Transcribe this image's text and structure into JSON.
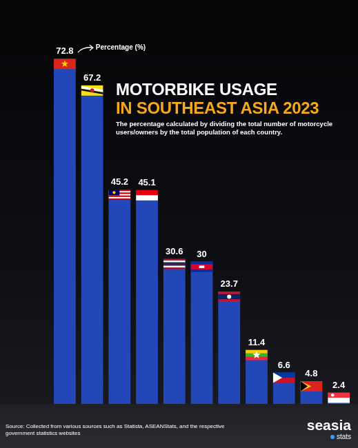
{
  "chart_data": {
    "type": "bar",
    "title": [
      "MOTORBIKE USAGE",
      "IN SOUTHEAST ASIA 2023"
    ],
    "subtitle": "The percentage calculated by dividing the total number of motorcycle users/owners by the total population of each country.",
    "annotation": "Percentage (%)",
    "source": "Source: Collected from various sources such as Statista, ASEANStats, and the respective government statistics websites",
    "logo": [
      "seasia",
      "stats"
    ],
    "categories": [
      null,
      null,
      null,
      null,
      null,
      null,
      null,
      null,
      null,
      null,
      null
    ],
    "values": [
      72.8,
      67.2,
      45.2,
      45.1,
      30.6,
      30,
      23.7,
      11.4,
      6.6,
      4.8,
      2.4
    ],
    "color": "#2447b8",
    "ylim": [
      0,
      75
    ],
    "grid": false,
    "data_labels": true,
    "tick_labels": false
  }
}
